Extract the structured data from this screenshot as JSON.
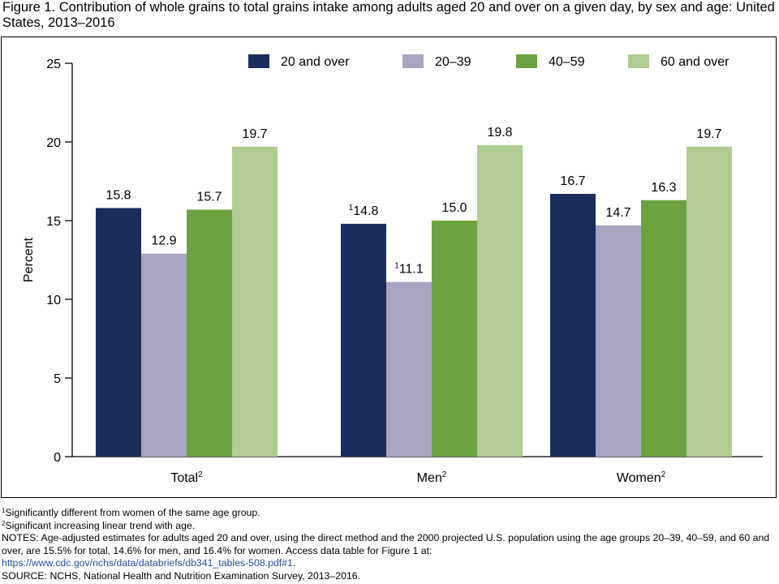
{
  "figure": {
    "title": "Figure 1. Contribution of whole grains to total grains intake among adults aged 20 and over on a given day, by sex and age: United States, 2013–2016"
  },
  "chart_data": {
    "type": "bar",
    "ylabel": "Percent",
    "xlabel": "",
    "ylim": [
      0,
      25
    ],
    "yticks": [
      0,
      5,
      10,
      15,
      20,
      25
    ],
    "grid": false,
    "legend_position": "top",
    "categories": [
      {
        "label": "Total",
        "sup": "2"
      },
      {
        "label": "Men",
        "sup": "2"
      },
      {
        "label": "Women",
        "sup": "2"
      }
    ],
    "series": [
      {
        "name": "20 and over",
        "color": "#1b2d5a",
        "values": [
          15.8,
          14.8,
          16.7
        ],
        "labels": [
          "15.8",
          "14.8",
          "16.7"
        ],
        "label_sups": [
          "",
          "1",
          ""
        ]
      },
      {
        "name": "20–39",
        "color": "#a7a5bf",
        "values": [
          12.9,
          11.1,
          14.7
        ],
        "labels": [
          "12.9",
          "11.1",
          "14.7"
        ],
        "label_sups": [
          "",
          "1",
          ""
        ]
      },
      {
        "name": "40–59",
        "color": "#6ba23f",
        "values": [
          15.7,
          15.0,
          16.3
        ],
        "labels": [
          "15.7",
          "15.0",
          "16.3"
        ],
        "label_sups": [
          "",
          "",
          ""
        ]
      },
      {
        "name": "60 and over",
        "color": "#b0cc92",
        "values": [
          19.7,
          19.8,
          19.7
        ],
        "labels": [
          "19.7",
          "19.8",
          "19.7"
        ],
        "label_sups": [
          "",
          "",
          ""
        ]
      }
    ]
  },
  "footnotes": {
    "note1": {
      "sup": "1",
      "text": "Significantly different from women of the same age group."
    },
    "note2": {
      "sup": "2",
      "text": "Significant increasing linear trend with age."
    },
    "notes_text": "NOTES: Age-adjusted estimates for adults aged 20 and over, using the direct method and the 2000 projected U.S. population using the age groups 20–39, 40–59, and 60 and over, are 15.5% for total, 14.6% for men, and 16.4% for women. Access data table for Figure 1 at:",
    "link": "https://www.cdc.gov/nchs/data/databriefs/db341_tables-508.pdf#1",
    "link_suffix": ".",
    "source": "SOURCE: NCHS, National Health and Nutrition Examination Survey, 2013–2016."
  }
}
